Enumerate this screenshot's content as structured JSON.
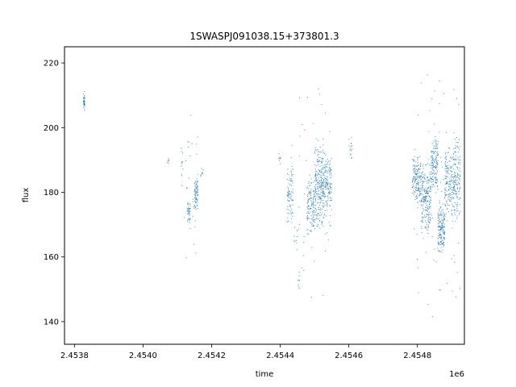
{
  "chart_data": {
    "type": "scatter",
    "title": "1SWASPJ091038.15+373801.3",
    "xlabel": "time",
    "ylabel": "flux",
    "x_offset_label": "1e6",
    "xlim": [
      2453771,
      2454937
    ],
    "ylim": [
      133,
      225
    ],
    "xticks": [
      {
        "value": 2453800,
        "label": "2.4538"
      },
      {
        "value": 2454000,
        "label": "2.4540"
      },
      {
        "value": 2454200,
        "label": "2.4542"
      },
      {
        "value": 2454400,
        "label": "2.4544"
      },
      {
        "value": 2454600,
        "label": "2.4546"
      },
      {
        "value": 2454800,
        "label": "2.4548"
      }
    ],
    "yticks": [
      {
        "value": 140,
        "label": "140"
      },
      {
        "value": 160,
        "label": "160"
      },
      {
        "value": 180,
        "label": "180"
      },
      {
        "value": 200,
        "label": "200"
      },
      {
        "value": 220,
        "label": "220"
      }
    ],
    "grid": false,
    "legend": "none",
    "color": "#1f77b4",
    "clusters": [
      {
        "x": [
          2453826,
          2453830
        ],
        "y": [
          204,
          212
        ],
        "n": 40
      },
      {
        "x": [
          2454071,
          2454077
        ],
        "y": [
          188,
          191
        ],
        "n": 6
      },
      {
        "x": [
          2454110,
          2454118
        ],
        "y": [
          180,
          198
        ],
        "n": 12
      },
      {
        "x": [
          2454128,
          2454138
        ],
        "y": [
          170,
          178
        ],
        "n": 40
      },
      {
        "x": [
          2454150,
          2454160
        ],
        "y": [
          174,
          186
        ],
        "n": 70
      },
      {
        "x": [
          2454168,
          2454176
        ],
        "y": [
          184,
          188
        ],
        "n": 8
      },
      {
        "x": [
          2454120,
          2454160
        ],
        "y": [
          150,
          205
        ],
        "n": 30
      },
      {
        "x": [
          2454395,
          2454402
        ],
        "y": [
          188,
          193
        ],
        "n": 8
      },
      {
        "x": [
          2454420,
          2454438
        ],
        "y": [
          170,
          190
        ],
        "n": 80
      },
      {
        "x": [
          2454440,
          2454450
        ],
        "y": [
          162,
          170
        ],
        "n": 10
      },
      {
        "x": [
          2454450,
          2454458
        ],
        "y": [
          148,
          156
        ],
        "n": 8
      },
      {
        "x": [
          2454478,
          2454500
        ],
        "y": [
          166,
          186
        ],
        "n": 120
      },
      {
        "x": [
          2454500,
          2454530
        ],
        "y": [
          168,
          196
        ],
        "n": 260
      },
      {
        "x": [
          2454530,
          2454550
        ],
        "y": [
          172,
          192
        ],
        "n": 120
      },
      {
        "x": [
          2454420,
          2454550
        ],
        "y": [
          140,
          215
        ],
        "n": 60
      },
      {
        "x": [
          2454600,
          2454610
        ],
        "y": [
          188,
          198
        ],
        "n": 15
      },
      {
        "x": [
          2454785,
          2454810
        ],
        "y": [
          176,
          192
        ],
        "n": 160
      },
      {
        "x": [
          2454810,
          2454840
        ],
        "y": [
          166,
          190
        ],
        "n": 220
      },
      {
        "x": [
          2454840,
          2454860
        ],
        "y": [
          180,
          198
        ],
        "n": 140
      },
      {
        "x": [
          2454860,
          2454880
        ],
        "y": [
          160,
          178
        ],
        "n": 160
      },
      {
        "x": [
          2454880,
          2454905
        ],
        "y": [
          170,
          195
        ],
        "n": 150
      },
      {
        "x": [
          2454905,
          2454925
        ],
        "y": [
          168,
          200
        ],
        "n": 150
      },
      {
        "x": [
          2454790,
          2454925
        ],
        "y": [
          137,
          218
        ],
        "n": 90
      }
    ]
  }
}
